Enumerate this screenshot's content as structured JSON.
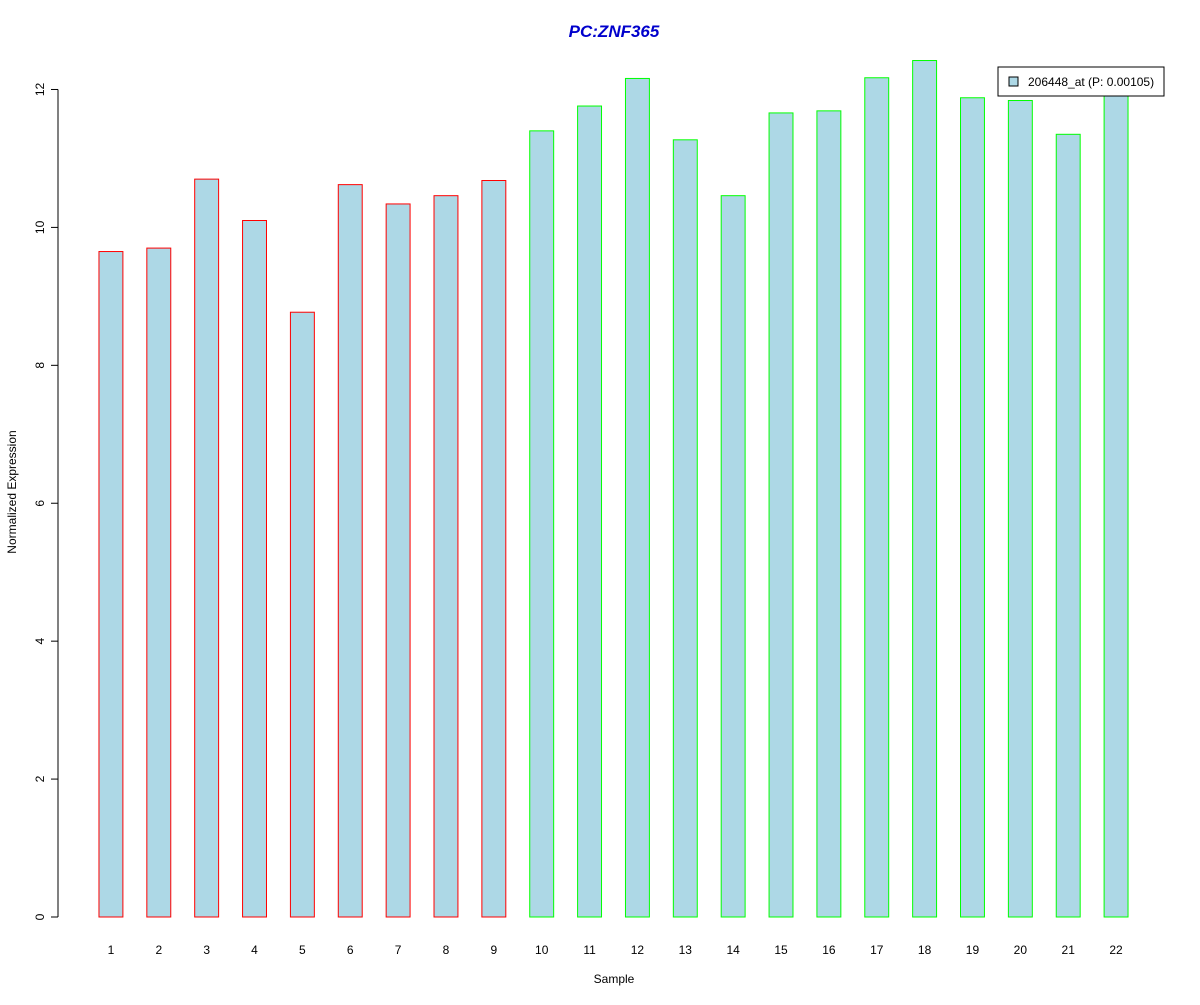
{
  "chart_data": {
    "type": "bar",
    "title": "PC:ZNF365",
    "xlabel": "Sample",
    "ylabel": "Normalized Expression",
    "ylim": [
      0,
      12.5
    ],
    "yticks": [
      0,
      2,
      4,
      6,
      8,
      10,
      12
    ],
    "ytick_labels": [
      "0",
      "2",
      "4",
      "6",
      "8",
      "10",
      "12"
    ],
    "categories": [
      "1",
      "2",
      "3",
      "4",
      "5",
      "6",
      "7",
      "8",
      "9",
      "10",
      "11",
      "12",
      "13",
      "14",
      "15",
      "16",
      "17",
      "18",
      "19",
      "20",
      "21",
      "22"
    ],
    "series": [
      {
        "name": "206448_at (P: 0.00105)",
        "fill_color": "#add8e6",
        "values": [
          9.65,
          9.7,
          10.7,
          10.1,
          8.77,
          10.62,
          10.34,
          10.46,
          10.68,
          11.4,
          11.76,
          12.16,
          11.27,
          10.46,
          11.66,
          11.69,
          12.17,
          12.42,
          11.88,
          11.84,
          11.35,
          12.02
        ]
      }
    ],
    "bar_border_colors": [
      "#ff0000",
      "#ff0000",
      "#ff0000",
      "#ff0000",
      "#ff0000",
      "#ff0000",
      "#ff0000",
      "#ff0000",
      "#ff0000",
      "#00ff00",
      "#00ff00",
      "#00ff00",
      "#00ff00",
      "#00ff00",
      "#00ff00",
      "#00ff00",
      "#00ff00",
      "#00ff00",
      "#00ff00",
      "#00ff00",
      "#00ff00",
      "#00ff00"
    ],
    "title_color": "#0000cc",
    "grid": false,
    "legend_position": "top-right"
  }
}
